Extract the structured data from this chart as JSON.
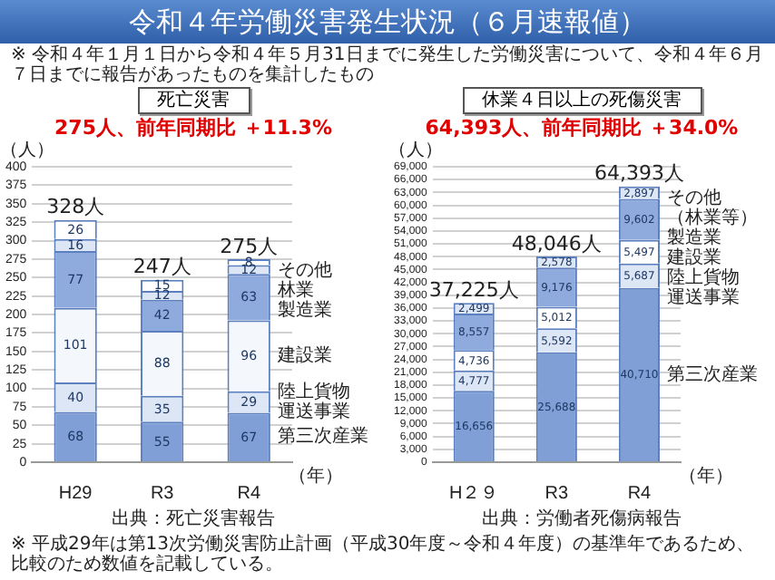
{
  "chart_data": [
    {
      "type": "bar",
      "stacked": true,
      "title": "死亡災害",
      "subtitle": "275人、前年同期比 ＋11.3%",
      "ylabel": "（人）",
      "xlabel": "（年）",
      "annotations": [
        "令和４年労働災害発生状況（６月速報値）",
        "※ 令和４年１月１日から令和４年５月31日までに発生した労働災害について、令和４年６月７日までに報告があったものを集計したもの",
        "出典：死亡災害報告"
      ],
      "categories": [
        "H29",
        "R3",
        "R4"
      ],
      "series": [
        {
          "name": "第三次産業",
          "color": "#7f9fd6",
          "values": [
            68,
            55,
            67
          ]
        },
        {
          "name": "陸上貨物運送事業",
          "color": "#dce6f5",
          "values": [
            40,
            35,
            29
          ]
        },
        {
          "name": "建設業",
          "color": "#f4f7fc",
          "values": [
            101,
            88,
            96
          ]
        },
        {
          "name": "製造業",
          "color": "#8faadc",
          "values": [
            77,
            42,
            63
          ]
        },
        {
          "name": "林業",
          "color": "#dce6f5",
          "values": [
            16,
            12,
            12
          ]
        },
        {
          "name": "その他",
          "color": "#ffffff",
          "values": [
            26,
            15,
            8
          ]
        }
      ],
      "totals": [
        "328人",
        "247人",
        "275人"
      ],
      "data_labels": true,
      "grid": "y",
      "legend": false,
      "ylim": [
        0,
        400
      ],
      "yticks": [
        0,
        25,
        50,
        75,
        100,
        125,
        150,
        175,
        200,
        225,
        250,
        275,
        300,
        325,
        350,
        375,
        400
      ]
    },
    {
      "type": "bar",
      "stacked": true,
      "title": "休業４日以上の死傷災害",
      "subtitle": "64,393人、前年同期比 ＋34.0%",
      "ylabel": "（人）",
      "xlabel": "（年）",
      "annotations": [
        "出典：労働者死傷病報告",
        "※ 平成29年は第13次労働災害防止計画（平成30年度～令和４年度）の基準年であるため、比較のため数値を記載している。"
      ],
      "categories": [
        "H２９",
        "R3",
        "R4"
      ],
      "series": [
        {
          "name": "第三次産業",
          "color": "#7f9fd6",
          "values": [
            16656,
            25688,
            40710
          ],
          "value_labels": [
            "16,656",
            "25,688",
            "40,710"
          ]
        },
        {
          "name": "陸上貨物運送事業",
          "color": "#dce6f5",
          "values": [
            4777,
            5592,
            5687
          ],
          "value_labels": [
            "4,777",
            "5,592",
            "5,687"
          ]
        },
        {
          "name": "建設業",
          "color": "#ffffff",
          "values": [
            4736,
            5012,
            5497
          ],
          "value_labels": [
            "4,736",
            "5,012",
            "5,497"
          ]
        },
        {
          "name": "製造業",
          "color": "#8faadc",
          "values": [
            8557,
            9176,
            9602
          ],
          "value_labels": [
            "8,557",
            "9,176",
            "9,602"
          ]
        },
        {
          "name": "その他（林業等）",
          "color": "#dce6f5",
          "values": [
            2499,
            2578,
            2897
          ],
          "value_labels": [
            "2,499",
            "2,578",
            "2,897"
          ]
        }
      ],
      "totals": [
        "37,225人",
        "48,046人",
        "64,393人"
      ],
      "grid": "y",
      "legend": false,
      "ylim": [
        0,
        69000
      ],
      "yticks": [
        {
          "value": 0,
          "label": "0"
        },
        {
          "value": 3000,
          "label": "3,000"
        },
        {
          "value": 6000,
          "label": "6,000"
        },
        {
          "value": 9000,
          "label": "9,000"
        },
        {
          "value": 12000,
          "label": "12,000"
        },
        {
          "value": 15000,
          "label": "15,000"
        },
        {
          "value": 18000,
          "label": "18,000"
        },
        {
          "value": 21000,
          "label": "21,000"
        },
        {
          "value": 24000,
          "label": "24,000"
        },
        {
          "value": 27000,
          "label": "27,000"
        },
        {
          "value": 30000,
          "label": "30,000"
        },
        {
          "value": 33000,
          "label": "33,000"
        },
        {
          "value": 36000,
          "label": "36,000"
        },
        {
          "value": 39000,
          "label": "39,000"
        },
        {
          "value": 42000,
          "label": "42,000"
        },
        {
          "value": 45000,
          "label": "45,000"
        },
        {
          "value": 48000,
          "label": "48,000"
        },
        {
          "value": 51000,
          "label": "51,000"
        },
        {
          "value": 54000,
          "label": "54,000"
        },
        {
          "value": 57000,
          "label": "57,000"
        },
        {
          "value": 60000,
          "label": "60,000"
        },
        {
          "value": 63000,
          "label": "63,000"
        },
        {
          "value": 66000,
          "label": "66,000"
        },
        {
          "value": 69000,
          "label": "69,000"
        }
      ]
    }
  ]
}
